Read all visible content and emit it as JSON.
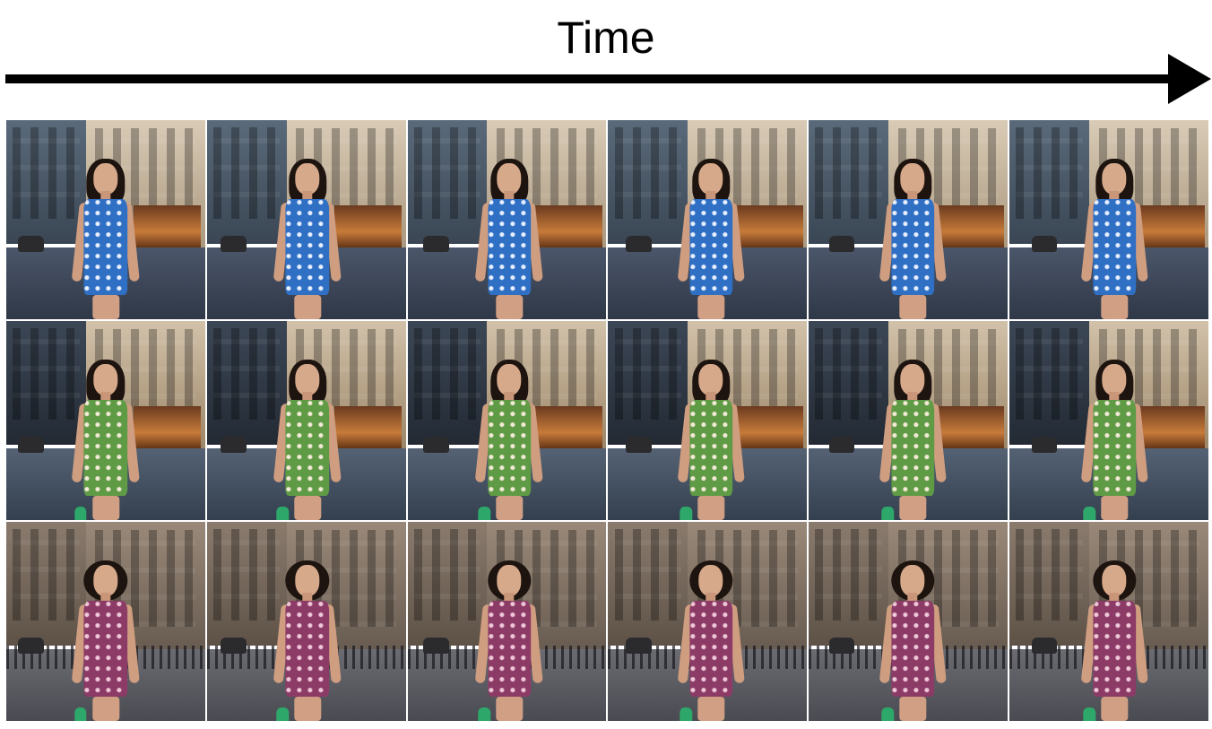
{
  "header": {
    "title": "Time"
  },
  "figure": {
    "rows": [
      {
        "theme": "row-blue",
        "dress_color": "#2f6fc4",
        "frames": 6
      },
      {
        "theme": "row-green",
        "dress_color": "#5f9a45",
        "frames": 6
      },
      {
        "theme": "row-pink",
        "dress_color": "#8c3b67",
        "frames": 6
      }
    ]
  }
}
